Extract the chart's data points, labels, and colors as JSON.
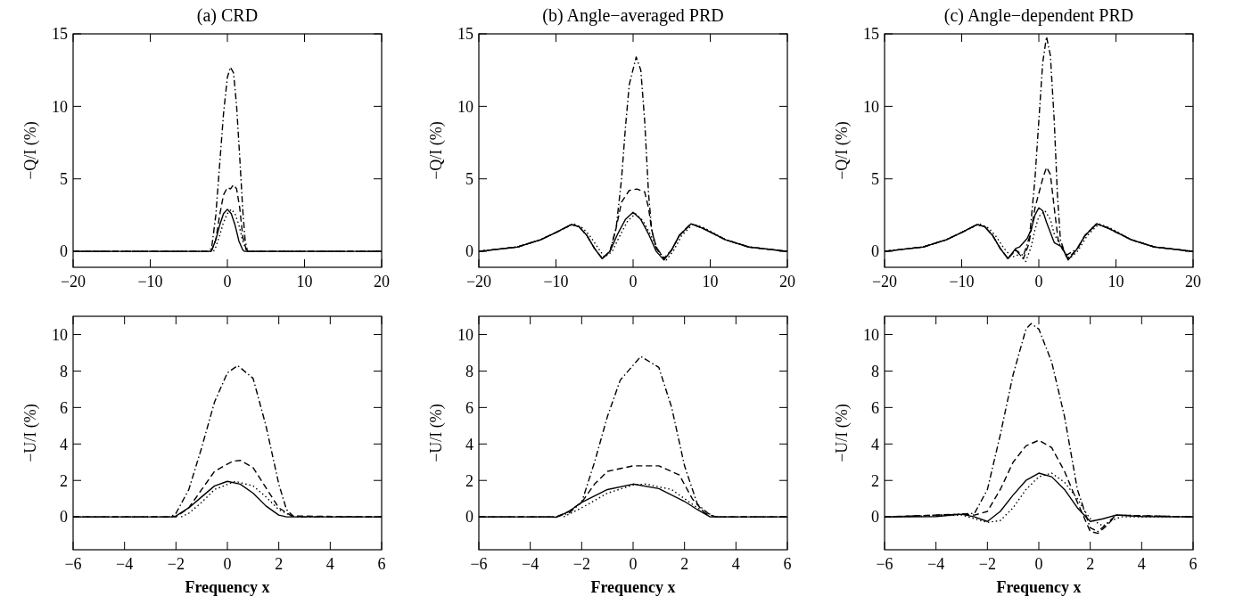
{
  "chart_data": [
    {
      "type": "line",
      "title": "(a) CRD",
      "ylabel": "−Q/I (%)",
      "xlim": [
        -20,
        20
      ],
      "xticks": [
        -20,
        -10,
        0,
        10,
        20
      ],
      "ylim": [
        -1.1,
        15
      ],
      "yticks": [
        0,
        5,
        10,
        15
      ],
      "series": [
        {
          "color": "#000000",
          "line_style": "solid",
          "x": [
            -20,
            -2.2,
            -2,
            -1.5,
            -1,
            -0.5,
            0,
            0.5,
            1,
            1.5,
            2,
            2.2,
            20
          ],
          "values": [
            0,
            0,
            0.1,
            0.8,
            1.8,
            2.6,
            2.9,
            2.6,
            1.8,
            0.7,
            0.1,
            0,
            0
          ]
        },
        {
          "color": "#000000",
          "line_style": "dotted",
          "x": [
            -20,
            -1.8,
            -1.5,
            -1,
            -0.5,
            0,
            0.5,
            1,
            1.5,
            2,
            2.5,
            20
          ],
          "values": [
            0,
            0,
            0.3,
            1.1,
            2,
            2.6,
            2.9,
            2.6,
            1.8,
            0.7,
            0,
            0
          ]
        },
        {
          "color": "#000000",
          "line_style": "dashed",
          "x": [
            -20,
            -2.1,
            -1.5,
            -1,
            -0.5,
            0,
            0.4,
            0.8,
            1.2,
            1.6,
            2,
            2.5,
            20
          ],
          "values": [
            0,
            0,
            0.8,
            2.5,
            3.9,
            4.4,
            4.3,
            4.6,
            4.3,
            3,
            1,
            0,
            0
          ]
        },
        {
          "color": "#000000",
          "line_style": "dashdot",
          "x": [
            -20,
            -2.3,
            -2,
            -1.5,
            -1,
            -0.5,
            0,
            0.4,
            0.8,
            1.2,
            1.6,
            2,
            2.3,
            2.6,
            20
          ],
          "values": [
            0,
            0,
            0.4,
            2.5,
            6,
            9.5,
            12,
            12.7,
            12.3,
            10,
            6.5,
            2.8,
            0.8,
            0,
            0
          ]
        }
      ]
    },
    {
      "type": "line",
      "title": "(b) Angle−averaged PRD",
      "ylabel": "−Q/I (%)",
      "xlim": [
        -20,
        20
      ],
      "xticks": [
        -20,
        -10,
        0,
        10,
        20
      ],
      "ylim": [
        -1.1,
        15
      ],
      "yticks": [
        0,
        5,
        10,
        15
      ],
      "series": [
        {
          "color": "#000000",
          "line_style": "solid",
          "x": [
            -20,
            -15,
            -12,
            -10,
            -8,
            -7,
            -6,
            -5,
            -4,
            -3,
            -2,
            -1,
            0,
            1,
            2,
            3,
            4,
            5,
            6,
            7.5,
            9,
            12,
            15,
            20
          ],
          "values": [
            0,
            0.3,
            0.8,
            1.3,
            1.85,
            1.7,
            1.1,
            0.2,
            -0.5,
            0,
            1.2,
            2.2,
            2.7,
            2.2,
            1.2,
            0,
            -0.6,
            0.1,
            1.1,
            1.9,
            1.6,
            0.8,
            0.3,
            0
          ]
        },
        {
          "color": "#000000",
          "line_style": "dotted",
          "x": [
            -20,
            -15,
            -12,
            -10,
            -7.7,
            -6.5,
            -5.5,
            -4.5,
            -3.7,
            -2.7,
            -1.7,
            -0.7,
            0.3,
            1.3,
            2.3,
            3.3,
            4.3,
            5.3,
            6.3,
            7.8,
            9.3,
            12,
            15,
            20
          ],
          "values": [
            0,
            0.3,
            0.8,
            1.3,
            1.9,
            1.6,
            1,
            0.2,
            -0.4,
            0,
            1.1,
            2.1,
            2.6,
            2.1,
            1.1,
            0,
            -0.6,
            0.1,
            1.1,
            1.9,
            1.6,
            0.8,
            0.3,
            0
          ]
        },
        {
          "color": "#000000",
          "line_style": "dashed",
          "x": [
            -20,
            -15,
            -12,
            -10,
            -8,
            -7,
            -6,
            -5,
            -4,
            -3,
            -2.2,
            -1.5,
            -0.5,
            0.5,
            1.5,
            2,
            2.4,
            3,
            4,
            5,
            6,
            7.5,
            9,
            12,
            15,
            20
          ],
          "values": [
            0,
            0.3,
            0.8,
            1.3,
            1.85,
            1.7,
            1.1,
            0.2,
            -0.5,
            0,
            1.6,
            3.4,
            4.2,
            4.3,
            4.1,
            3,
            1.5,
            0.3,
            -0.5,
            0.1,
            1.1,
            1.9,
            1.6,
            0.8,
            0.3,
            0
          ]
        },
        {
          "color": "#000000",
          "line_style": "dashdot",
          "x": [
            -20,
            -15,
            -12,
            -10,
            -8,
            -7,
            -6,
            -5,
            -4,
            -3,
            -2.2,
            -1.5,
            -1,
            -0.5,
            0.4,
            1,
            1.5,
            2,
            2.4,
            3,
            4,
            5,
            6,
            7.5,
            9,
            12,
            15,
            20
          ],
          "values": [
            0,
            0.3,
            0.8,
            1.3,
            1.85,
            1.7,
            1.1,
            0.2,
            -0.5,
            0,
            1.6,
            5,
            8.5,
            11.5,
            13.4,
            12.5,
            9,
            4,
            1.5,
            0.2,
            -0.5,
            0.1,
            1.1,
            1.9,
            1.6,
            0.8,
            0.3,
            0
          ]
        }
      ]
    },
    {
      "type": "line",
      "title": "(c) Angle−dependent PRD",
      "ylabel": "−Q/I (%)",
      "xlim": [
        -20,
        20
      ],
      "xticks": [
        -20,
        -10,
        0,
        10,
        20
      ],
      "ylim": [
        -1.1,
        15
      ],
      "yticks": [
        0,
        5,
        10,
        15
      ],
      "series": [
        {
          "color": "#000000",
          "line_style": "solid",
          "x": [
            -20,
            -15,
            -12,
            -10,
            -8,
            -7,
            -6,
            -5,
            -4,
            -3,
            -2.5,
            -1.5,
            -1,
            -0.5,
            0,
            0.5,
            1,
            2,
            3,
            3.8,
            5,
            6,
            7.5,
            9,
            12,
            15,
            20
          ],
          "values": [
            0,
            0.3,
            0.8,
            1.3,
            1.85,
            1.7,
            1.1,
            0.2,
            -0.5,
            0.2,
            0.3,
            0.9,
            1.5,
            2.5,
            3,
            2.8,
            2,
            0.6,
            0.3,
            -0.6,
            0.2,
            1.1,
            1.9,
            1.6,
            0.8,
            0.3,
            0
          ]
        },
        {
          "color": "#000000",
          "line_style": "dotted",
          "x": [
            -20,
            -15,
            -12,
            -10,
            -7.7,
            -6.5,
            -5.5,
            -4.5,
            -3.5,
            -2.5,
            -1.7,
            -1,
            -0.5,
            0,
            0.8,
            1.5,
            2,
            2.8,
            4,
            5,
            6.3,
            7.8,
            9.3,
            12,
            15,
            20
          ],
          "values": [
            0,
            0.3,
            0.8,
            1.3,
            1.9,
            1.6,
            1,
            0.2,
            -0.4,
            -0.2,
            -0.7,
            0.3,
            1.5,
            2.4,
            2.8,
            2.2,
            1.2,
            0.4,
            -0.5,
            0,
            1.1,
            1.9,
            1.6,
            0.8,
            0.3,
            0
          ]
        },
        {
          "color": "#000000",
          "line_style": "dashed",
          "x": [
            -20,
            -15,
            -12,
            -10,
            -8,
            -7,
            -6,
            -5,
            -4,
            -3,
            -2,
            -1.3,
            -0.5,
            0.5,
            1,
            1.5,
            2,
            2.5,
            3,
            3.8,
            5,
            6,
            7.5,
            9,
            12,
            15,
            20
          ],
          "values": [
            0,
            0.3,
            0.8,
            1.3,
            1.85,
            1.7,
            1.1,
            0.2,
            -0.5,
            0.1,
            -0.5,
            0.5,
            3,
            5,
            5.8,
            5.3,
            3,
            0.8,
            0.2,
            -0.5,
            0.2,
            1.1,
            1.9,
            1.6,
            0.8,
            0.3,
            0
          ]
        },
        {
          "color": "#000000",
          "line_style": "dashdot",
          "x": [
            -20,
            -15,
            -12,
            -10,
            -8,
            -7,
            -6,
            -5,
            -4,
            -3,
            -2,
            -1.2,
            -0.5,
            0,
            0.5,
            1,
            1.5,
            2,
            2.4,
            2.8,
            3.5,
            5,
            6,
            7.5,
            9,
            12,
            15,
            20
          ],
          "values": [
            0,
            0.3,
            0.8,
            1.3,
            1.85,
            1.7,
            1.1,
            0.2,
            -0.5,
            0.1,
            -0.3,
            1,
            5,
            9,
            13,
            14.8,
            13.5,
            9,
            4,
            0.8,
            -0.3,
            0.2,
            1.1,
            1.9,
            1.6,
            0.8,
            0.3,
            0
          ]
        }
      ]
    },
    {
      "type": "line",
      "xlabel": "Frequency x",
      "ylabel": "−U/I (%)",
      "xlim": [
        -6,
        6
      ],
      "xticks": [
        -6,
        -4,
        -2,
        0,
        2,
        4,
        6
      ],
      "ylim": [
        -1.8,
        11
      ],
      "yticks": [
        0,
        2,
        4,
        6,
        8,
        10
      ],
      "series": [
        {
          "color": "#000000",
          "line_style": "solid",
          "x": [
            -6,
            -2.2,
            -2,
            -1.5,
            -1,
            -0.5,
            0,
            0.5,
            1,
            1.5,
            2,
            2.3,
            6
          ],
          "values": [
            0,
            0,
            0.05,
            0.5,
            1.1,
            1.7,
            1.95,
            1.8,
            1.3,
            0.6,
            0.1,
            0,
            0
          ]
        },
        {
          "color": "#000000",
          "line_style": "dotted",
          "x": [
            -1.8,
            -1.5,
            -1,
            -0.5,
            0.3,
            1,
            1.5,
            2,
            2.5
          ],
          "values": [
            0,
            0.2,
            0.8,
            1.5,
            1.95,
            1.7,
            1.1,
            0.4,
            0.05
          ]
        },
        {
          "color": "#000000",
          "line_style": "dashed",
          "x": [
            -6,
            -2,
            -1.5,
            -1,
            -0.5,
            0.2,
            0.5,
            1,
            1.5,
            2,
            2.5,
            6
          ],
          "values": [
            0,
            0,
            0.5,
            1.5,
            2.5,
            3.05,
            3.1,
            2.7,
            1.6,
            0.5,
            0.05,
            0
          ]
        },
        {
          "color": "#000000",
          "line_style": "dashdot",
          "x": [
            -6,
            -2.2,
            -2,
            -1.5,
            -1,
            -0.5,
            0,
            0.4,
            1,
            1.5,
            2,
            2.3,
            2.6,
            6
          ],
          "values": [
            0,
            0,
            0.2,
            1.5,
            3.8,
            6.3,
            7.9,
            8.3,
            7.6,
            5,
            1.8,
            0.4,
            0,
            0
          ]
        }
      ]
    },
    {
      "type": "line",
      "xlabel": "Frequency x",
      "ylabel": "−U/I (%)",
      "xlim": [
        -6,
        6
      ],
      "xticks": [
        -6,
        -4,
        -2,
        0,
        2,
        4,
        6
      ],
      "ylim": [
        -1.8,
        11
      ],
      "yticks": [
        0,
        2,
        4,
        6,
        8,
        10
      ],
      "series": [
        {
          "color": "#000000",
          "line_style": "solid",
          "x": [
            -6,
            -3.2,
            -3,
            -2.5,
            -2,
            -1,
            0,
            1,
            2,
            2.5,
            3,
            6
          ],
          "values": [
            0,
            0,
            -0.02,
            0.3,
            0.8,
            1.5,
            1.8,
            1.55,
            0.85,
            0.4,
            0,
            0
          ]
        },
        {
          "color": "#000000",
          "line_style": "dotted",
          "x": [
            -2.7,
            -2,
            -1,
            0,
            0.5,
            1.5,
            2.5,
            3.2
          ],
          "values": [
            0,
            0.5,
            1.3,
            1.75,
            1.8,
            1.5,
            0.5,
            0
          ]
        },
        {
          "color": "#000000",
          "line_style": "dashed",
          "x": [
            -6,
            -3,
            -2.5,
            -2,
            -1.5,
            -1,
            0,
            1,
            1.8,
            2.3,
            2.8,
            3.2,
            6
          ],
          "values": [
            0,
            0,
            0.3,
            0.8,
            1.8,
            2.5,
            2.8,
            2.8,
            2.3,
            1,
            0.2,
            0,
            0
          ]
        },
        {
          "color": "#000000",
          "line_style": "dashdot",
          "x": [
            -6,
            -3,
            -2.5,
            -2,
            -1.5,
            -1,
            -0.5,
            0.3,
            1,
            1.5,
            2,
            2.5,
            3,
            3.3,
            6
          ],
          "values": [
            0,
            0,
            0.2,
            0.8,
            3,
            5.5,
            7.5,
            8.8,
            8.2,
            6,
            2.8,
            0.7,
            0.1,
            0,
            0
          ]
        }
      ]
    },
    {
      "type": "line",
      "xlabel": "Frequency x",
      "ylabel": "−U/I (%)",
      "xlim": [
        -6,
        6
      ],
      "xticks": [
        -6,
        -4,
        -2,
        0,
        2,
        4,
        6
      ],
      "ylim": [
        -1.8,
        11
      ],
      "yticks": [
        0,
        2,
        4,
        6,
        8,
        10
      ],
      "series": [
        {
          "color": "#000000",
          "line_style": "solid",
          "x": [
            -6,
            -4,
            -3,
            -2.5,
            -2,
            -1.5,
            -1,
            -0.5,
            0,
            0.5,
            1,
            1.5,
            2,
            2.5,
            3,
            4,
            6
          ],
          "values": [
            0,
            0.02,
            0.15,
            0,
            -0.25,
            0.3,
            1.2,
            2,
            2.4,
            2.2,
            1.5,
            0.5,
            -0.25,
            -0.1,
            0.1,
            0.02,
            0
          ]
        },
        {
          "color": "#000000",
          "line_style": "dotted",
          "x": [
            -6,
            -3,
            -2.5,
            -2,
            -1.5,
            -1,
            -0.5,
            0,
            0.5,
            1,
            1.5,
            1.8,
            2,
            2.5,
            2.8,
            3.2,
            6
          ],
          "values": [
            0,
            0.1,
            -0.1,
            -0.3,
            -0.2,
            0.5,
            1.5,
            2.2,
            2.4,
            1.9,
            1,
            0.3,
            -0.1,
            -0.5,
            -0.2,
            0,
            0
          ]
        },
        {
          "color": "#000000",
          "line_style": "dashed",
          "x": [
            -6,
            -3,
            -2.5,
            -2,
            -1.5,
            -1,
            -0.5,
            0,
            0.5,
            1,
            1.5,
            2,
            2.3,
            2.7,
            3,
            6
          ],
          "values": [
            0,
            0.15,
            0.1,
            0.3,
            1.5,
            3,
            3.9,
            4.2,
            3.8,
            2.5,
            0.8,
            -0.8,
            -0.9,
            -0.4,
            0.1,
            0
          ]
        },
        {
          "color": "#000000",
          "line_style": "dashdot",
          "x": [
            -6,
            -3,
            -2.5,
            -2,
            -1.5,
            -1,
            -0.5,
            -0.3,
            0,
            0.5,
            1,
            1.5,
            2,
            2.3,
            2.7,
            3,
            6
          ],
          "values": [
            0,
            0.15,
            0.2,
            1.5,
            4.5,
            7.8,
            10.3,
            10.6,
            10.3,
            8.5,
            5.5,
            1.5,
            -0.6,
            -0.8,
            -0.3,
            0.1,
            0
          ]
        }
      ]
    }
  ]
}
